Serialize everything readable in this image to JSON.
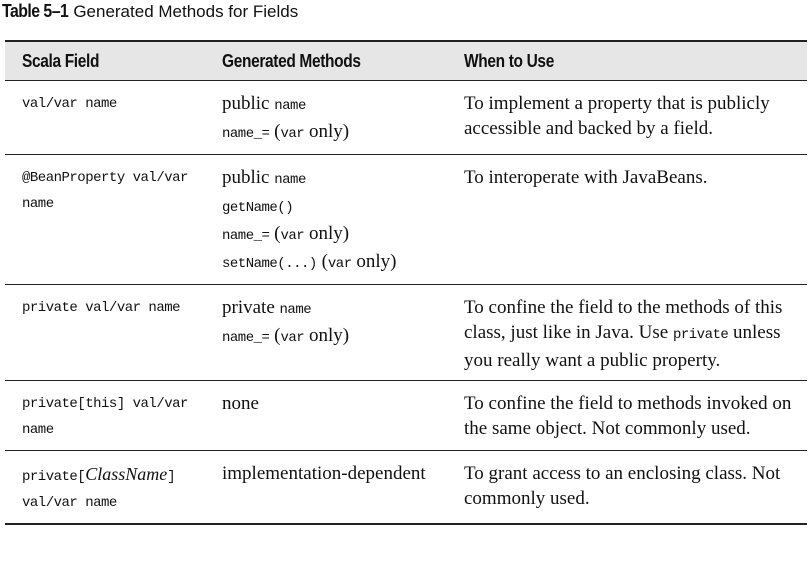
{
  "caption": {
    "label": "Table 5–1",
    "title": "Generated Methods for Fields"
  },
  "headers": {
    "field": "Scala Field",
    "methods": "Generated Methods",
    "when": "When to Use"
  },
  "rows": [
    {
      "field": [
        "val/var name"
      ],
      "methods": [
        {
          "pre": "public ",
          "code": "name",
          "post": ""
        },
        {
          "pre": "",
          "code": "name_=",
          "post": " (",
          "code2": "var",
          "post2": " only)"
        }
      ],
      "when": "To implement a property that is publicly accessible and backed by a field."
    },
    {
      "field": [
        "@BeanProperty val/var",
        "name"
      ],
      "methods": [
        {
          "pre": "public ",
          "code": "name",
          "post": ""
        },
        {
          "pre": "",
          "code": "getName()",
          "post": ""
        },
        {
          "pre": "",
          "code": "name_=",
          "post": " (",
          "code2": "var",
          "post2": " only)"
        },
        {
          "pre": "",
          "code": "setName(...)",
          "post": " (",
          "code2": "var",
          "post2": " only)"
        }
      ],
      "when": "To interoperate with JavaBeans."
    },
    {
      "field": [
        "private val/var name"
      ],
      "methods": [
        {
          "pre": "private ",
          "code": "name",
          "post": ""
        },
        {
          "pre": "",
          "code": "name_=",
          "post": " (",
          "code2": "var",
          "post2": " only)"
        }
      ],
      "when_parts": {
        "a": "To confine the field to the methods of this class, just like in Java. Use ",
        "code": "private",
        "b": " unless you really want a public property."
      }
    },
    {
      "field": [
        "private[this] val/var",
        "name"
      ],
      "methods_text": "none",
      "when": "To confine the field to methods invoked on the same object. Not commonly used."
    },
    {
      "field_parts": {
        "pre": "private[",
        "italic": "ClassName",
        "post": "]",
        "line2": "val/var name"
      },
      "methods_text": "implementation-dependent",
      "when": "To grant access to an enclosing class. Not commonly used."
    }
  ]
}
